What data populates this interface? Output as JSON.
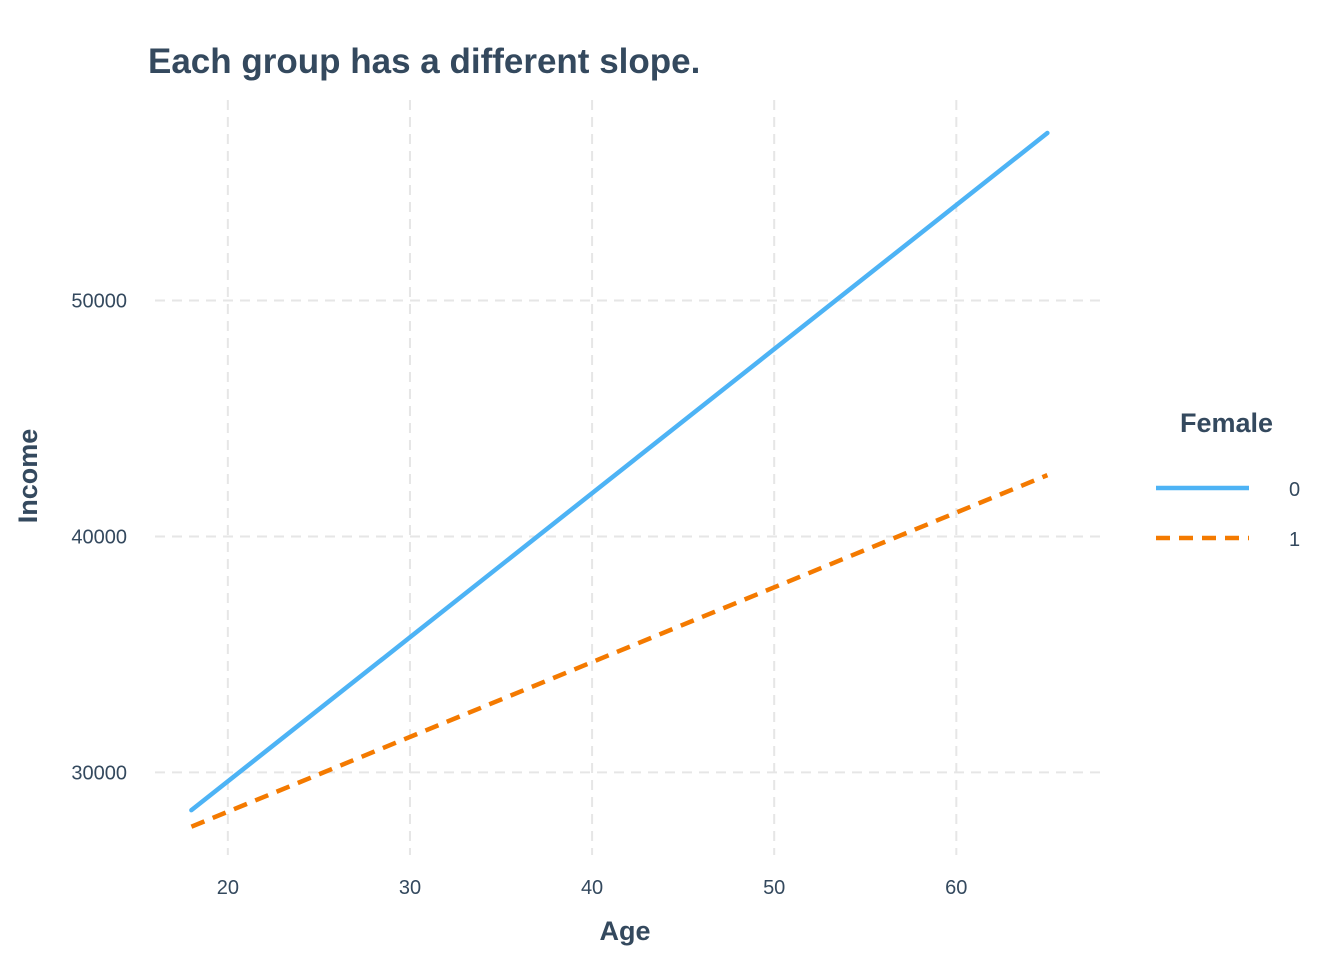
{
  "chart_data": {
    "type": "line",
    "title": "Each group has a different slope.",
    "xlabel": "Age",
    "ylabel": "Income",
    "xlim": [
      16,
      68
    ],
    "ylim": [
      26500,
      58500
    ],
    "x_ticks": [
      20,
      30,
      40,
      50,
      60
    ],
    "x_tick_labels": [
      "20",
      "30",
      "40",
      "50",
      "60"
    ],
    "y_ticks": [
      30000,
      40000,
      50000
    ],
    "y_tick_labels": [
      "30000",
      "40000",
      "50000"
    ],
    "grid": true,
    "legend": {
      "title": "Female",
      "position": "right"
    },
    "series": [
      {
        "name": "0",
        "color": "#4db3f5",
        "line_style": "solid",
        "x": [
          18,
          65
        ],
        "y": [
          28400,
          57100
        ]
      },
      {
        "name": "1",
        "color": "#f47a00",
        "line_style": "dashed",
        "x": [
          18,
          65
        ],
        "y": [
          27700,
          42600
        ]
      }
    ]
  }
}
